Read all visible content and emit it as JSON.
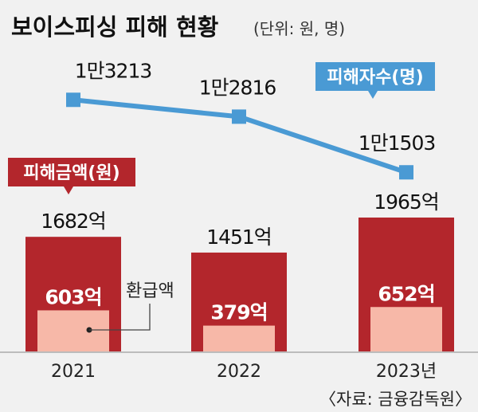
{
  "title": "보이스피싱 피해 현황",
  "unit_note": "(단위: 원, 명)",
  "source": "〈자료: 금융감독원〉",
  "colors": {
    "damage_bar": "#b3262c",
    "refund_bar": "#f7b8a8",
    "victims_line": "#4a9ad4",
    "damage_tag": "#b3262c",
    "victims_tag": "#4a9ad4"
  },
  "chart_data": {
    "type": "bar",
    "categories": [
      "2021",
      "2022",
      "2023년"
    ],
    "series": [
      {
        "name": "피해금액(원)",
        "kind": "bar",
        "values": [
          1682,
          1451,
          1965
        ],
        "labels": [
          "1682억",
          "1451억",
          "1965억"
        ]
      },
      {
        "name": "환급액",
        "kind": "bar",
        "values": [
          603,
          379,
          652
        ],
        "labels": [
          "603억",
          "379억",
          "652억"
        ]
      },
      {
        "name": "피해자수(명)",
        "kind": "line",
        "values": [
          13213,
          12816,
          11503
        ],
        "labels": [
          "1만3213",
          "1만2816",
          "1만1503"
        ]
      }
    ]
  }
}
